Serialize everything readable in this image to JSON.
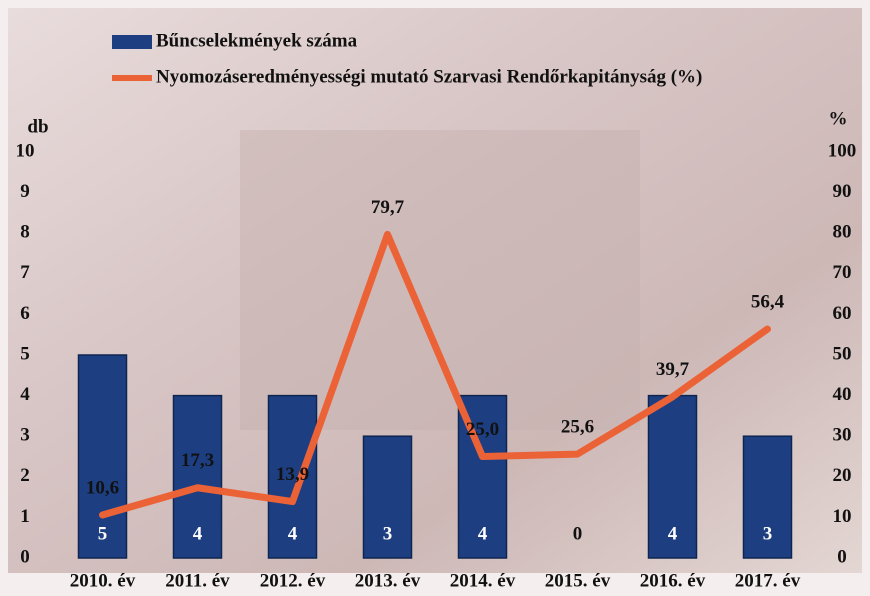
{
  "chart_data": {
    "type": "bar",
    "categories": [
      "2010. év",
      "2011. év",
      "2012. év",
      "2013. év",
      "2014. év",
      "2015. év",
      "2016. év",
      "2017. év"
    ],
    "series": [
      {
        "name": "Bűncselekmények száma",
        "type": "bar",
        "color": "#1d3f82",
        "values": [
          5,
          4,
          4,
          3,
          4,
          0,
          4,
          3
        ]
      },
      {
        "name": "Nyomozáseredményességi mutató Szarvasi Rendőrkapitányság (%)",
        "type": "line",
        "axis": "y2",
        "color": "#ec6237",
        "values": [
          10.6,
          17.3,
          13.9,
          79.7,
          25.0,
          25.6,
          39.7,
          56.4
        ],
        "value_labels": [
          "10,6",
          "17,3",
          "13,9",
          "79,7",
          "25,0",
          "25,6",
          "39,7",
          "56,4"
        ]
      }
    ],
    "ylabel": "db",
    "y2label": "%",
    "ylim": [
      0,
      10
    ],
    "yticks": [
      0,
      1,
      2,
      3,
      4,
      5,
      6,
      7,
      8,
      9,
      10
    ],
    "y2lim": [
      0,
      100
    ],
    "y2ticks": [
      0,
      10,
      20,
      30,
      40,
      50,
      60,
      70,
      80,
      90,
      100
    ]
  }
}
